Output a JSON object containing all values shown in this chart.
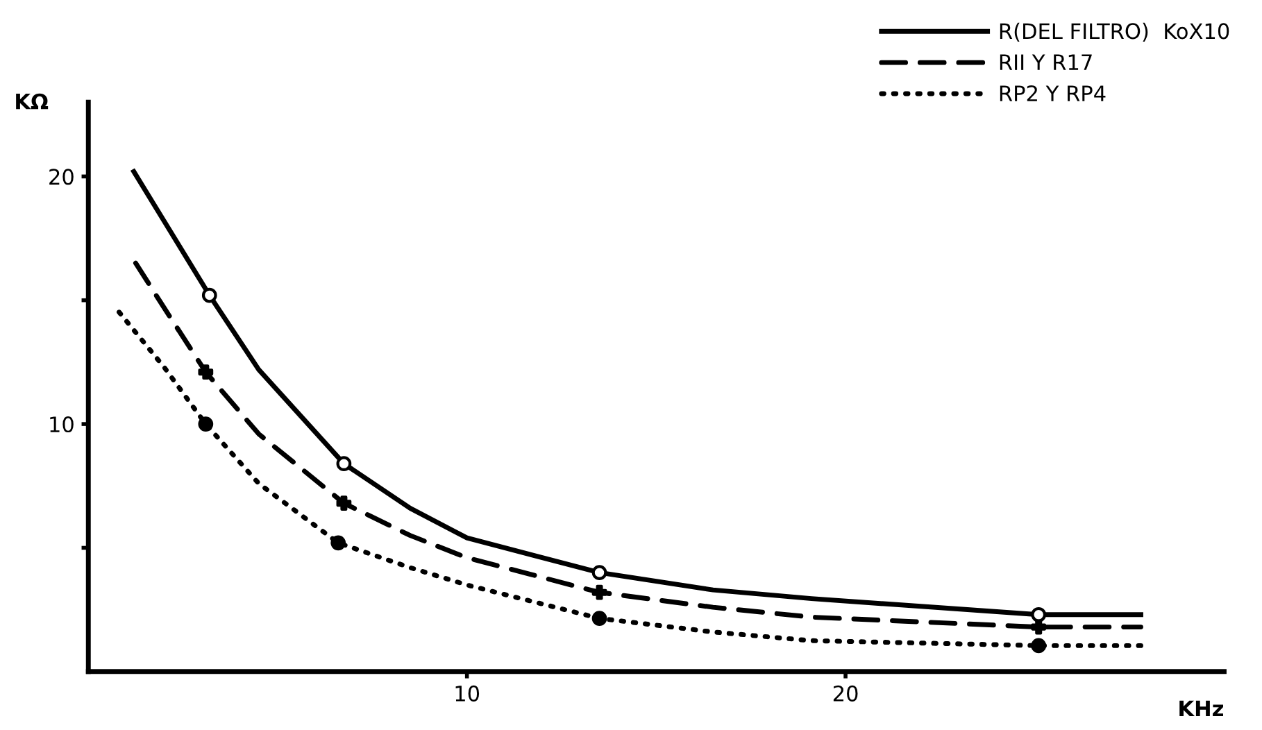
{
  "chart_data": {
    "type": "line",
    "xlabel": "KHz",
    "ylabel": "KΩ",
    "xlim": [
      0,
      30
    ],
    "ylim": [
      0,
      23
    ],
    "xticks": [
      10,
      20
    ],
    "yticks": [
      {
        "value": 5,
        "label": null
      },
      10,
      {
        "value": 15,
        "label": null
      },
      20
    ],
    "grid": false,
    "legend": "top right",
    "series": [
      {
        "name": "R(DEL FILTRO)  KoX10",
        "color": "#000000",
        "line_style": "solid",
        "marker": "none",
        "x": [
          1.2,
          2,
          3.2,
          4.5,
          6.75,
          8.5,
          10,
          13.5,
          16.5,
          19.1,
          25.1,
          27.8
        ],
        "values": [
          20.2,
          18.2,
          15.2,
          12.2,
          8.4,
          6.6,
          5.4,
          4.0,
          3.3,
          2.95,
          2.3,
          2.3
        ]
      },
      {
        "name": "RII Y R17",
        "color": "#000000",
        "line_style": "dashed",
        "marker": "none",
        "x": [
          1.25,
          2,
          3.1,
          4.5,
          6.75,
          8.5,
          10,
          13.5,
          16.5,
          19.1,
          25.1,
          27.8
        ],
        "values": [
          16.5,
          14.7,
          12.1,
          9.6,
          6.8,
          5.5,
          4.6,
          3.2,
          2.6,
          2.2,
          1.8,
          1.8
        ]
      },
      {
        "name": "RP2 Y RP4",
        "color": "#000000",
        "line_style": "dotted",
        "marker": "none",
        "x": [
          0.77,
          2,
          3.1,
          4.5,
          6.6,
          8.5,
          10,
          13.5,
          16.5,
          19.1,
          25.1,
          27.8
        ],
        "values": [
          14.6,
          12.3,
          10.0,
          7.6,
          5.2,
          4.2,
          3.5,
          2.15,
          1.6,
          1.25,
          1.05,
          1.05
        ]
      },
      {
        "type": "scatter",
        "color": "#ffffff",
        "marker": "circle",
        "x": [
          3.2,
          6.75,
          13.5,
          25.1
        ],
        "values": [
          15.2,
          8.4,
          4.0,
          2.3
        ]
      },
      {
        "type": "scatter",
        "color": "#000000",
        "marker": "cross",
        "x": [
          3.1,
          6.75,
          13.5,
          25.1
        ],
        "values": [
          12.1,
          6.8,
          3.2,
          1.8
        ]
      },
      {
        "type": "scatter",
        "color": "#000000",
        "marker": "circle",
        "x": [
          3.1,
          6.6,
          13.5,
          25.1
        ],
        "values": [
          10.0,
          5.2,
          2.15,
          1.05
        ]
      }
    ]
  }
}
